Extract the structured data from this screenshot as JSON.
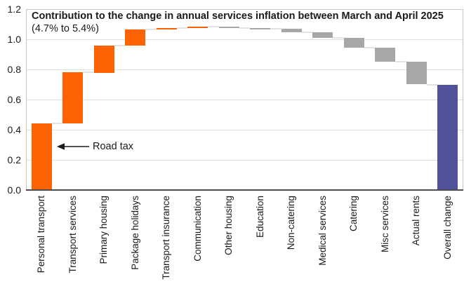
{
  "header": {
    "title": "Contribution to the change in annual services inflation between March and April 2025",
    "subtitle": "(4.7% to 5.4%)"
  },
  "annotation": {
    "label": "Road tax",
    "target": "Personal transport"
  },
  "colors": {
    "increase": "#FF6200",
    "decrease": "#A7A7A7",
    "total": "#52519B",
    "gridline": "#E0E0E0",
    "connector": "#E3E3E3",
    "plot_border": "#C6C6C6",
    "axis_line": "#4D4D4D",
    "text": "#1A1A1A"
  },
  "y_axis": {
    "ticks": [
      "0.0",
      "0.2",
      "0.4",
      "0.6",
      "0.8",
      "1.0",
      "1.2"
    ]
  },
  "chart_data": {
    "type": "bar",
    "subtype": "waterfall",
    "title": "Contribution to the change in annual services inflation between March and April 2025 (4.7% to 5.4%)",
    "ylabel": "",
    "xlabel": "",
    "ylim": [
      0,
      1.2
    ],
    "yticks": [
      0,
      0.2,
      0.4,
      0.6,
      0.8,
      1.0,
      1.2
    ],
    "grid": true,
    "legend": false,
    "categories": [
      "Personal transport",
      "Transport services",
      "Primary housing",
      "Package holidays",
      "Transport insurance",
      "Communication",
      "Other housing",
      "Education",
      "Non-catering",
      "Medical services",
      "Catering",
      "Misc services",
      "Actual rents",
      "Overall change"
    ],
    "bars": [
      {
        "label": "Personal transport",
        "start": 0,
        "end": 0.44,
        "change": 0.44,
        "role": "increase"
      },
      {
        "label": "Transport services",
        "start": 0.44,
        "end": 0.78,
        "change": 0.34,
        "role": "increase"
      },
      {
        "label": "Primary housing",
        "start": 0.78,
        "end": 0.96,
        "change": 0.18,
        "role": "increase"
      },
      {
        "label": "Package holidays",
        "start": 0.96,
        "end": 1.065,
        "change": 0.105,
        "role": "increase"
      },
      {
        "label": "Transport insurance",
        "start": 1.065,
        "end": 1.075,
        "change": 0.01,
        "role": "increase"
      },
      {
        "label": "Communication",
        "start": 1.075,
        "end": 1.085,
        "change": 0.01,
        "role": "increase"
      },
      {
        "label": "Other housing",
        "start": 1.085,
        "end": 1.075,
        "change": -0.01,
        "role": "decrease"
      },
      {
        "label": "Education",
        "start": 1.075,
        "end": 1.07,
        "change": -0.005,
        "role": "decrease"
      },
      {
        "label": "Non-catering",
        "start": 1.07,
        "end": 1.045,
        "change": -0.025,
        "role": "decrease"
      },
      {
        "label": "Medical services",
        "start": 1.045,
        "end": 1.01,
        "change": -0.035,
        "role": "decrease"
      },
      {
        "label": "Catering",
        "start": 1.01,
        "end": 0.945,
        "change": -0.065,
        "role": "decrease"
      },
      {
        "label": "Misc services",
        "start": 0.945,
        "end": 0.85,
        "change": -0.095,
        "role": "decrease"
      },
      {
        "label": "Actual rents",
        "start": 0.85,
        "end": 0.7,
        "change": -0.15,
        "role": "decrease"
      },
      {
        "label": "Overall change",
        "start": 0,
        "end": 0.7,
        "change": 0.7,
        "role": "total"
      }
    ]
  }
}
